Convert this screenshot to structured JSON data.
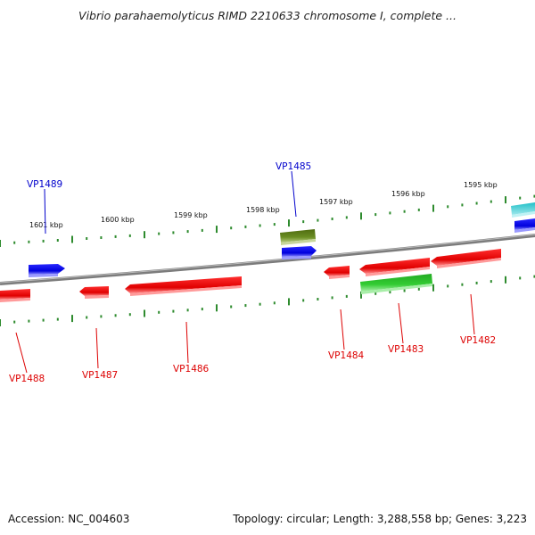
{
  "title": "Vibrio parahaemolyticus RIMD 2210633 chromosome I, complete ...",
  "ruler_labels": [
    "1601 kbp",
    "1600 kbp",
    "1599 kbp",
    "1598 kbp",
    "1597 kbp",
    "1596 kbp",
    "1595 kbp"
  ],
  "gene_labels": {
    "top": [
      {
        "name": "VP1489",
        "color": "#0000cc"
      },
      {
        "name": "VP1485",
        "color": "#0000cc"
      }
    ],
    "bottom": [
      {
        "name": "VP1488",
        "color": "#dd0000"
      },
      {
        "name": "VP1487",
        "color": "#dd0000"
      },
      {
        "name": "VP1486",
        "color": "#dd0000"
      },
      {
        "name": "VP1484",
        "color": "#dd0000"
      },
      {
        "name": "VP1483",
        "color": "#dd0000"
      },
      {
        "name": "VP1482",
        "color": "#dd0000"
      }
    ]
  },
  "footer": {
    "accession": "Accession: NC_004603",
    "stats": "Topology: circular; Length: 3,288,558 bp; Genes: 3,223"
  },
  "colors": {
    "backbone": "#8a8a8a",
    "tick": "#2e8b2e",
    "forward_gene": "#1010ee",
    "reverse_gene": "#ee1010",
    "olive_gene": "#6b8e23",
    "green_gene": "#33cc33",
    "cyan_gene": "#20c0c8"
  }
}
